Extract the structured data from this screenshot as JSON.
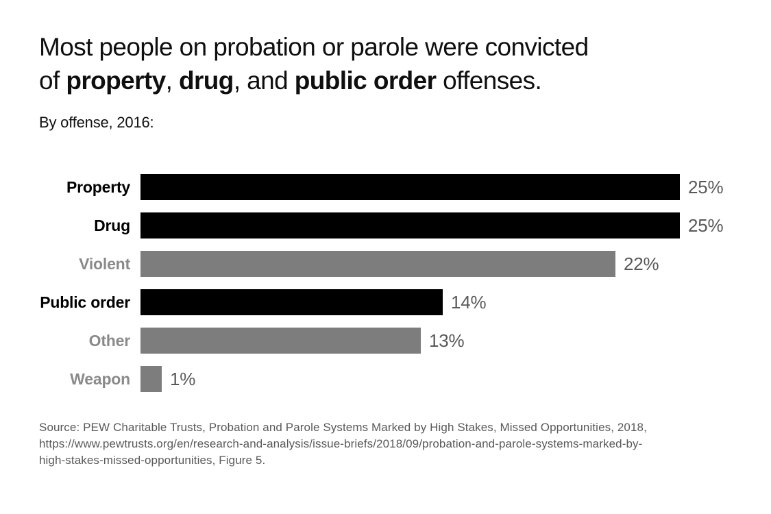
{
  "title": {
    "lines": [
      [
        {
          "text": "Most people on probation or parole were convicted",
          "bold": false
        }
      ],
      [
        {
          "text": "of ",
          "bold": false
        },
        {
          "text": "property",
          "bold": true
        },
        {
          "text": ", ",
          "bold": false
        },
        {
          "text": "drug",
          "bold": true
        },
        {
          "text": ", and ",
          "bold": false
        },
        {
          "text": "public order",
          "bold": true
        },
        {
          "text": " offenses.",
          "bold": false
        }
      ]
    ]
  },
  "subtitle": "By offense, 2016:",
  "chart_data": {
    "type": "bar",
    "orientation": "horizontal",
    "title": "Most people on probation or parole were convicted of property, drug, and public order offenses.",
    "subtitle": "By offense, 2016:",
    "categories": [
      "Property",
      "Drug",
      "Violent",
      "Public order",
      "Other",
      "Weapon"
    ],
    "values": [
      25,
      25,
      22,
      14,
      13,
      1
    ],
    "value_labels": [
      "25%",
      "25%",
      "22%",
      "14%",
      "13%",
      "1%"
    ],
    "emphasized": [
      true,
      true,
      false,
      true,
      false,
      false
    ],
    "xlim": [
      0,
      25
    ],
    "grid": false,
    "axes_hidden": true,
    "value_label_position": "outside-end"
  },
  "colors": {
    "background": "#ffffff",
    "title_text": "#0f0f0f",
    "bar_emphasis": "#000000",
    "bar_muted": "#7d7d7d",
    "category_label_emphasis": "#000000",
    "category_label_muted": "#8a8a8a",
    "value_text": "#58595b",
    "source_text": "#58595b"
  },
  "source": {
    "lines": [
      "Source: PEW Charitable Trusts, Probation and Parole Systems Marked by High Stakes, Missed Opportunities, 2018,",
      "https://www.pewtrusts.org/en/research-and-analysis/issue-briefs/2018/09/probation-and-parole-systems-marked-by-",
      "high-stakes-missed-opportunities, Figure 5."
    ]
  }
}
